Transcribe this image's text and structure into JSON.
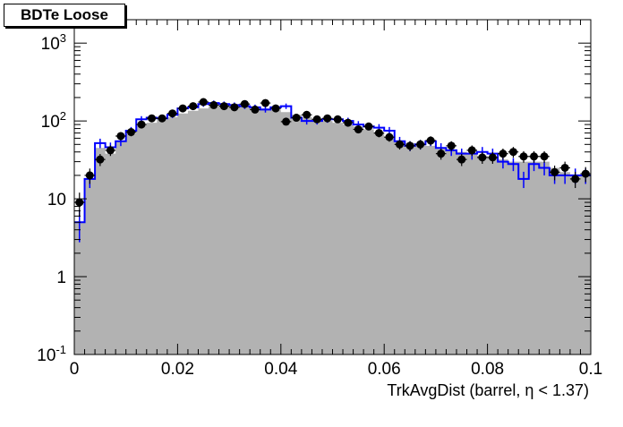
{
  "chart_data": {
    "type": "bar",
    "title": "BDTe Loose",
    "xlabel": "TrkAvgDist (barrel,  η < 1.37)",
    "ylabel": "",
    "xlim": [
      0,
      0.1
    ],
    "ylim": [
      0.1,
      2000
    ],
    "yscale": "log",
    "grid": false,
    "bin_width": 0.002,
    "x_ticks": [
      "0",
      "0.02",
      "0.04",
      "0.06",
      "0.08",
      "0.1"
    ],
    "y_ticks": [
      "10-1",
      "1",
      "10",
      "102",
      "103"
    ],
    "bin_edges": [
      0,
      0.002,
      0.004,
      0.006,
      0.008,
      0.01,
      0.012,
      0.014,
      0.016,
      0.018,
      0.02,
      0.022,
      0.024,
      0.026,
      0.028,
      0.03,
      0.032,
      0.034,
      0.036,
      0.038,
      0.04,
      0.042,
      0.044,
      0.046,
      0.048,
      0.05,
      0.052,
      0.054,
      0.056,
      0.058,
      0.06,
      0.062,
      0.064,
      0.066,
      0.068,
      0.07,
      0.072,
      0.074,
      0.076,
      0.078,
      0.08,
      0.082,
      0.084,
      0.086,
      0.088,
      0.09,
      0.092,
      0.094,
      0.096,
      0.098,
      0.1
    ],
    "series": [
      {
        "color": "#b2b2b2",
        "style": "filled histogram",
        "values": [
          5,
          18,
          45,
          38,
          55,
          70,
          88,
          95,
          105,
          112,
          125,
          135,
          145,
          155,
          160,
          165,
          160,
          150,
          145,
          140,
          130,
          120,
          112,
          105,
          100,
          95,
          90,
          85,
          78,
          70,
          62,
          55,
          52,
          50,
          48,
          45,
          42,
          40,
          38,
          36,
          34,
          32,
          30,
          30,
          30,
          30,
          25,
          22,
          20,
          20
        ]
      },
      {
        "color": "#0000ff",
        "style": "step histogram with error bars",
        "values": [
          5,
          18,
          52,
          46,
          55,
          75,
          105,
          110,
          108,
          120,
          145,
          150,
          165,
          170,
          165,
          160,
          155,
          150,
          140,
          150,
          155,
          110,
          100,
          100,
          105,
          105,
          100,
          90,
          85,
          82,
          75,
          55,
          48,
          50,
          55,
          45,
          42,
          38,
          38,
          40,
          38,
          30,
          28,
          18,
          28,
          25,
          20,
          20,
          20,
          20
        ]
      },
      {
        "color": "#000000",
        "style": "markers with error bars",
        "values": [
          9,
          20,
          32,
          42,
          64,
          72,
          90,
          108,
          108,
          125,
          145,
          155,
          175,
          160,
          155,
          150,
          165,
          140,
          170,
          145,
          98,
          110,
          120,
          105,
          108,
          105,
          95,
          78,
          85,
          70,
          62,
          50,
          48,
          50,
          56,
          38,
          48,
          32,
          42,
          34,
          34,
          38,
          40,
          35,
          35,
          35,
          22,
          25,
          18,
          21
        ]
      }
    ]
  }
}
